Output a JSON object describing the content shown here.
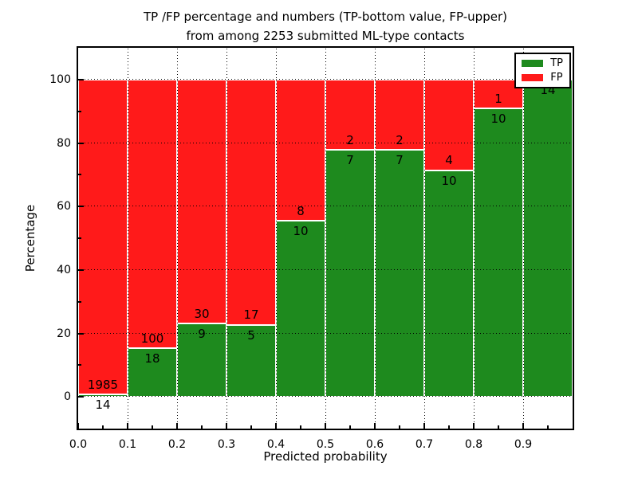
{
  "figure": {
    "title_line1": "TP /FP percentage and numbers (TP-bottom value, FP-upper)",
    "title_line2": "from among 2253 submitted ML-type contacts",
    "xlabel": "Predicted probability",
    "ylabel": "Percentage"
  },
  "legend": {
    "items": [
      {
        "label": "TP",
        "color": "#1e8a1e"
      },
      {
        "label": "FP",
        "color": "#ff1a1a"
      }
    ]
  },
  "chart_data": {
    "type": "bar",
    "stacked": true,
    "normalized_to_percent": true,
    "title": "TP /FP percentage and numbers (TP-bottom value, FP-upper) from among 2253 submitted ML-type contacts",
    "xlabel": "Predicted probability",
    "ylabel": "Percentage",
    "xlim": [
      0.0,
      1.0
    ],
    "ylim": [
      -10,
      110
    ],
    "x_tick_labels": [
      "0.0",
      "0.1",
      "0.2",
      "0.3",
      "0.4",
      "0.5",
      "0.6",
      "0.7",
      "0.8",
      "0.9"
    ],
    "y_tick_labels": [
      "0",
      "20",
      "40",
      "60",
      "80",
      "100"
    ],
    "grid": true,
    "legend_position": "upper right",
    "colors": {
      "tp": "#1e8a1e",
      "fp": "#ff1a1a"
    },
    "total_contacts": 2253,
    "series": [
      {
        "name": "TP",
        "counts": [
          14,
          18,
          9,
          5,
          10,
          7,
          7,
          10,
          10,
          14
        ]
      },
      {
        "name": "FP",
        "counts": [
          1985,
          100,
          30,
          17,
          8,
          2,
          2,
          4,
          1,
          0
        ]
      }
    ],
    "tp_percent": [
      0.7,
      15.25,
      23.08,
      22.73,
      55.56,
      77.78,
      77.78,
      71.43,
      90.91,
      100.0
    ],
    "bins": [
      {
        "x0": 0.0,
        "x1": 0.1,
        "tp": 14,
        "fp": 1985
      },
      {
        "x0": 0.1,
        "x1": 0.2,
        "tp": 18,
        "fp": 100
      },
      {
        "x0": 0.2,
        "x1": 0.3,
        "tp": 9,
        "fp": 30
      },
      {
        "x0": 0.3,
        "x1": 0.4,
        "tp": 5,
        "fp": 17
      },
      {
        "x0": 0.4,
        "x1": 0.5,
        "tp": 10,
        "fp": 8
      },
      {
        "x0": 0.5,
        "x1": 0.6,
        "tp": 7,
        "fp": 2
      },
      {
        "x0": 0.6,
        "x1": 0.7,
        "tp": 7,
        "fp": 2
      },
      {
        "x0": 0.7,
        "x1": 0.8,
        "tp": 10,
        "fp": 4
      },
      {
        "x0": 0.8,
        "x1": 0.9,
        "tp": 10,
        "fp": 1
      },
      {
        "x0": 0.9,
        "x1": 1.0,
        "tp": 14,
        "fp": 0
      }
    ]
  }
}
